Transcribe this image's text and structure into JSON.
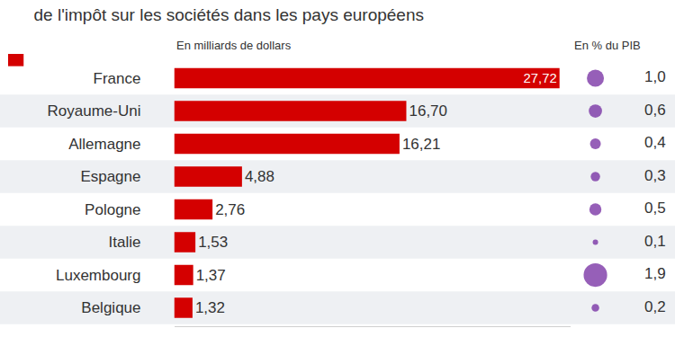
{
  "chart_data": [
    {
      "type": "bar",
      "title": "de l'impôt sur les sociétés dans les pays européens",
      "x_label": "En milliards de dollars",
      "orientation": "horizontal",
      "categories": [
        "France",
        "Royaume-Uni",
        "Allemagne",
        "Espagne",
        "Pologne",
        "Italie",
        "Luxembourg",
        "Belgique"
      ],
      "values": [
        27.72,
        16.7,
        16.21,
        4.88,
        2.76,
        1.53,
        1.37,
        1.32
      ],
      "value_labels": [
        "27,72",
        "16,70",
        "16,21",
        "4,88",
        "2,76",
        "1,53",
        "1,37",
        "1,32"
      ],
      "data_labels": true,
      "color": "#d40000",
      "xlim": [
        0,
        28.5
      ],
      "xticks": [],
      "tick_labels": "y",
      "grid": false
    },
    {
      "type": "scatter",
      "x_label": "En % du PIB",
      "categories": [
        "France",
        "Royaume-Uni",
        "Allemagne",
        "Espagne",
        "Pologne",
        "Italie",
        "Luxembourg",
        "Belgique"
      ],
      "values": [
        1.0,
        0.6,
        0.4,
        0.3,
        0.5,
        0.1,
        1.9,
        0.2
      ],
      "value_labels": [
        "1,0",
        "0,6",
        "0,4",
        "0,3",
        "0,5",
        "0,1",
        "1,9",
        "0,2"
      ],
      "data_labels": true,
      "color": "#6a1b9a",
      "marker": "circle",
      "tick_labels": false
    }
  ]
}
